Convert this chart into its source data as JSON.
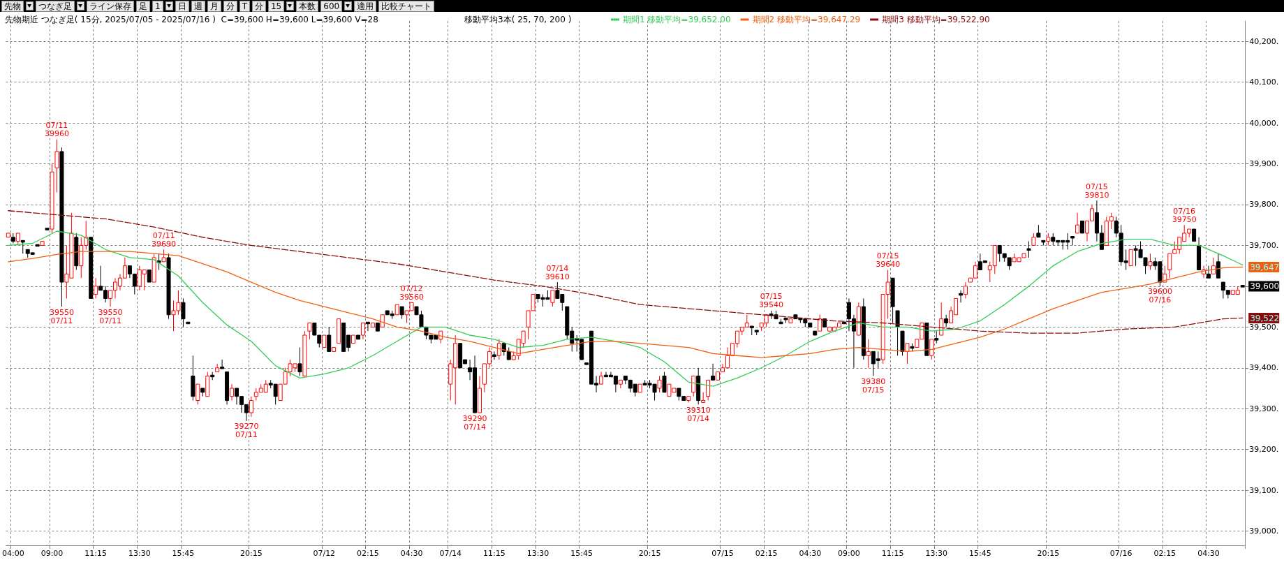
{
  "chart_data": {
    "type": "candlestick",
    "title": "先物期近 つなぎ足( 15分, 2025/07/05 - 2025/07/16 )  C=39,600 H=39,600 L=39,600 V=28",
    "subtitle": "移動平均3本( 25, 70, 200 )",
    "categories": [
      null,
      "04:00",
      null,
      null,
      null,
      null,
      null,
      null,
      null,
      "09:00",
      null,
      null,
      null,
      null,
      null,
      null,
      null,
      null,
      "11:15",
      null,
      null,
      null,
      null,
      null,
      null,
      null,
      null,
      "13:30",
      null,
      null,
      null,
      null,
      null,
      null,
      null,
      null,
      "15:45",
      null,
      null,
      null,
      null,
      null,
      null,
      null,
      null,
      null,
      null,
      null,
      null,
      null,
      "20:15",
      null,
      null,
      null,
      null,
      null,
      null,
      null,
      null,
      null,
      null,
      null,
      null,
      null,
      null,
      "07/12",
      null,
      null,
      null,
      null,
      null,
      null,
      null,
      null,
      "02:15",
      null,
      null,
      null,
      null,
      null,
      null,
      null,
      null,
      "04:30",
      null,
      null,
      null,
      null,
      null,
      null,
      null,
      "07/14",
      null,
      null,
      null,
      null,
      null,
      null,
      null,
      null,
      "11:15",
      null,
      null,
      null,
      null,
      null,
      null,
      null,
      null,
      "13:30",
      null,
      null,
      null,
      null,
      null,
      null,
      null,
      null,
      "15:45",
      null,
      null,
      null,
      null,
      null,
      null,
      null,
      null,
      null,
      null,
      null,
      null,
      null,
      "20:15",
      null,
      null,
      null,
      null,
      null,
      null,
      null,
      null,
      null,
      null,
      null,
      null,
      null,
      null,
      "07/15",
      null,
      null,
      null,
      null,
      null,
      null,
      null,
      null,
      "02:15",
      null,
      null,
      null,
      null,
      null,
      null,
      null,
      null,
      "04:30",
      null,
      null,
      null,
      null,
      null,
      null,
      null,
      "09:00",
      null,
      null,
      null,
      null,
      null,
      null,
      null,
      null,
      "11:15",
      null,
      null,
      null,
      null,
      null,
      null,
      null,
      null,
      "13:30",
      null,
      null,
      null,
      null,
      null,
      null,
      null,
      null,
      "15:45",
      null,
      null,
      null,
      null,
      null,
      null,
      null,
      null,
      null,
      null,
      null,
      null,
      null,
      "20:15",
      null,
      null,
      null,
      null,
      null,
      null,
      null,
      null,
      null,
      null,
      null,
      null,
      null,
      null,
      "07/16",
      null,
      null,
      null,
      null,
      null,
      null,
      null,
      null,
      "02:15",
      null,
      null,
      null,
      null,
      null,
      null,
      null,
      null,
      "04:30",
      null,
      null,
      null,
      null,
      null,
      null,
      null
    ],
    "ohlc": [
      [
        39720,
        39730,
        39720,
        39730
      ],
      [
        39720,
        39730,
        39705,
        39710
      ],
      [
        39710,
        39730,
        39700,
        39730
      ],
      [
        39710,
        39710,
        39680,
        39710
      ],
      [
        39690,
        39690,
        39670,
        39680
      ],
      [
        39680,
        39680,
        39680,
        39680
      ],
      [
        39700,
        39700,
        39700,
        39700
      ],
      [
        39700,
        39710,
        39700,
        39710
      ],
      [
        39740,
        39740,
        39740,
        39740
      ],
      [
        39740,
        39900,
        39730,
        39880
      ],
      [
        39890,
        39960,
        39830,
        39930
      ],
      [
        39930,
        39940,
        39550,
        39610
      ],
      [
        39610,
        39700,
        39570,
        39630
      ],
      [
        39620,
        39780,
        39620,
        39730
      ],
      [
        39720,
        39730,
        39640,
        39650
      ],
      [
        39650,
        39720,
        39620,
        39700
      ],
      [
        39700,
        39760,
        39690,
        39720
      ],
      [
        39720,
        39720,
        39570,
        39570
      ],
      [
        39580,
        39620,
        39570,
        39600
      ],
      [
        39600,
        39650,
        39590,
        39590
      ],
      [
        39590,
        39600,
        39560,
        39570
      ],
      [
        39570,
        39590,
        39550,
        39590
      ],
      [
        39590,
        39620,
        39570,
        39610
      ],
      [
        39600,
        39630,
        39590,
        39620
      ],
      [
        39620,
        39670,
        39620,
        39650
      ],
      [
        39650,
        39650,
        39620,
        39630
      ],
      [
        39630,
        39630,
        39580,
        39600
      ],
      [
        39600,
        39650,
        39590,
        39640
      ],
      [
        39630,
        39640,
        39590,
        39640
      ],
      [
        39640,
        39640,
        39610,
        39610
      ],
      [
        39610,
        39680,
        39610,
        39670
      ],
      [
        39660,
        39680,
        39640,
        39660
      ],
      [
        39660,
        39690,
        39660,
        39670
      ],
      [
        39670,
        39680,
        39520,
        39530
      ],
      [
        39530,
        39565,
        39490,
        39540
      ],
      [
        39540,
        39590,
        39530,
        39560
      ],
      [
        39560,
        39570,
        39500,
        39520
      ],
      [
        39510,
        39510,
        39510,
        39510
      ],
      [
        39380,
        39430,
        39320,
        39330
      ],
      [
        39320,
        39360,
        39310,
        39360
      ],
      [
        39350,
        39350,
        39330,
        39340
      ],
      [
        39330,
        39390,
        39330,
        39380
      ],
      [
        39380,
        39390,
        39370,
        39380
      ],
      [
        39390,
        39410,
        39390,
        39400
      ],
      [
        39400,
        39420,
        39400,
        39400
      ],
      [
        39390,
        39390,
        39310,
        39320
      ],
      [
        39330,
        39360,
        39320,
        39350
      ],
      [
        39350,
        39350,
        39310,
        39330
      ],
      [
        39330,
        39330,
        39290,
        39310
      ],
      [
        39310,
        39310,
        39270,
        39290
      ],
      [
        39290,
        39330,
        39280,
        39320
      ],
      [
        39330,
        39350,
        39320,
        39340
      ],
      [
        39340,
        39360,
        39340,
        39350
      ],
      [
        39340,
        39370,
        39340,
        39360
      ],
      [
        39360,
        39370,
        39350,
        39360
      ],
      [
        39360,
        39360,
        39310,
        39330
      ],
      [
        39320,
        39360,
        39320,
        39360
      ],
      [
        39360,
        39400,
        39360,
        39390
      ],
      [
        39390,
        39420,
        39380,
        39410
      ],
      [
        39400,
        39410,
        39390,
        39410
      ],
      [
        39410,
        39450,
        39380,
        39390
      ],
      [
        39380,
        39490,
        39380,
        39480
      ],
      [
        39490,
        39510,
        39470,
        39510
      ],
      [
        39510,
        39510,
        39480,
        39480
      ],
      [
        39480,
        39480,
        39450,
        39460
      ],
      [
        39450,
        39480,
        39450,
        39480
      ],
      [
        39480,
        39500,
        39440,
        39440
      ],
      [
        39440,
        39450,
        39440,
        39450
      ],
      [
        39460,
        39520,
        39460,
        39520
      ],
      [
        39510,
        39510,
        39440,
        39440
      ],
      [
        39480,
        39480,
        39440,
        39450
      ],
      [
        39460,
        39480,
        39460,
        39480
      ],
      [
        39480,
        39480,
        39470,
        39470
      ],
      [
        39480,
        39510,
        39470,
        39510
      ],
      [
        39510,
        39510,
        39490,
        39510
      ],
      [
        39500,
        39510,
        39500,
        39510
      ],
      [
        39510,
        39510,
        39490,
        39490
      ],
      [
        39500,
        39530,
        39500,
        39530
      ],
      [
        39540,
        39540,
        39530,
        39530
      ],
      [
        39530,
        39540,
        39520,
        39530
      ],
      [
        39530,
        39555,
        39530,
        39555
      ],
      [
        39550,
        39550,
        39520,
        39530
      ],
      [
        39530,
        39540,
        39510,
        39540
      ],
      [
        39540,
        39560,
        39540,
        39560
      ],
      [
        39550,
        39550,
        39530,
        39530
      ],
      [
        39530,
        39540,
        39500,
        39500
      ],
      [
        39500,
        39500,
        39470,
        39480
      ],
      [
        39480,
        39480,
        39460,
        39470
      ],
      [
        39480,
        39480,
        39470,
        39470
      ],
      [
        39470,
        39490,
        39460,
        39490
      ],
      null,
      [
        39360,
        39420,
        39320,
        39410
      ],
      [
        39400,
        39480,
        39310,
        39460
      ],
      [
        39460,
        39460,
        39400,
        39400
      ],
      [
        39420,
        39420,
        39410,
        39410
      ],
      [
        39400,
        39420,
        39370,
        39390
      ],
      [
        39400,
        39430,
        39290,
        39290
      ],
      [
        39290,
        39380,
        39290,
        39350
      ],
      [
        39360,
        39410,
        39340,
        39410
      ],
      [
        39410,
        39450,
        39400,
        39440
      ],
      [
        39430,
        39440,
        39420,
        39430
      ],
      [
        39430,
        39470,
        39420,
        39460
      ],
      [
        39460,
        39460,
        39430,
        39440
      ],
      [
        39440,
        39450,
        39420,
        39420
      ],
      [
        39420,
        39440,
        39420,
        39430
      ],
      [
        39430,
        39470,
        39420,
        39470
      ],
      [
        39460,
        39490,
        39450,
        39490
      ],
      [
        39500,
        39540,
        39470,
        39540
      ],
      [
        39540,
        39580,
        39540,
        39580
      ],
      [
        39580,
        39580,
        39560,
        39570
      ],
      [
        39570,
        39580,
        39550,
        39570
      ],
      [
        39570,
        39590,
        39570,
        39570
      ],
      [
        39560,
        39590,
        39550,
        39590
      ],
      [
        39590,
        39610,
        39570,
        39570
      ],
      [
        39580,
        39580,
        39540,
        39560
      ],
      [
        39550,
        39550,
        39470,
        39480
      ],
      [
        39490,
        39500,
        39440,
        39460
      ],
      [
        39470,
        39480,
        39440,
        39470
      ],
      [
        39470,
        39470,
        39420,
        39420
      ],
      [
        39410,
        39410,
        39410,
        39410
      ],
      [
        39490,
        39490,
        39360,
        39360
      ],
      [
        39360,
        39380,
        39340,
        39360
      ],
      [
        39360,
        39390,
        39360,
        39380
      ],
      [
        39380,
        39390,
        39380,
        39380
      ],
      [
        39380,
        39390,
        39380,
        39380
      ],
      [
        39380,
        39380,
        39340,
        39360
      ],
      [
        39360,
        39370,
        39350,
        39370
      ],
      [
        39380,
        39380,
        39360,
        39370
      ],
      [
        39370,
        39370,
        39340,
        39350
      ],
      [
        39360,
        39360,
        39330,
        39340
      ],
      [
        39340,
        39360,
        39340,
        39360
      ],
      [
        39360,
        39370,
        39360,
        39360
      ],
      [
        39360,
        39370,
        39350,
        39360
      ],
      [
        39360,
        39360,
        39320,
        39340
      ],
      [
        39350,
        39380,
        39340,
        39370
      ],
      [
        39380,
        39390,
        39340,
        39340
      ],
      [
        39330,
        39360,
        39330,
        39360
      ],
      [
        39340,
        39350,
        39340,
        39350
      ],
      [
        39350,
        39350,
        39320,
        39330
      ],
      [
        39330,
        39330,
        39320,
        39320
      ],
      [
        39320,
        39330,
        39315,
        39330
      ],
      [
        39340,
        39380,
        39330,
        39380
      ],
      [
        39380,
        39400,
        39310,
        39320
      ],
      [
        39315,
        39340,
        39315,
        39320
      ],
      [
        39330,
        39370,
        39320,
        39370
      ],
      [
        39380,
        39410,
        39370,
        39370
      ],
      [
        39370,
        39390,
        39370,
        39390
      ],
      [
        39390,
        39410,
        39390,
        39400
      ],
      [
        39400,
        39450,
        39400,
        39430
      ],
      [
        39430,
        39460,
        39430,
        39460
      ],
      [
        39460,
        39490,
        39450,
        39490
      ],
      [
        39490,
        39500,
        39480,
        39500
      ],
      [
        39500,
        39530,
        39500,
        39510
      ],
      [
        39500,
        39500,
        39480,
        39500
      ],
      [
        39490,
        39490,
        39480,
        39490
      ],
      [
        39500,
        39510,
        39490,
        39510
      ],
      [
        39510,
        39530,
        39500,
        39530
      ],
      [
        39530,
        39540,
        39520,
        39530
      ],
      [
        39530,
        39540,
        39520,
        39520
      ],
      [
        39510,
        39520,
        39510,
        39510
      ],
      [
        39520,
        39520,
        39510,
        39520
      ],
      [
        39510,
        39520,
        39510,
        39520
      ],
      [
        39530,
        39530,
        39520,
        39520
      ],
      [
        39520,
        39520,
        39510,
        39520
      ],
      [
        39520,
        39520,
        39500,
        39510
      ],
      [
        39510,
        39510,
        39500,
        39500
      ],
      [
        39490,
        39490,
        39480,
        39480
      ],
      [
        39490,
        39530,
        39490,
        39520
      ],
      [
        39520,
        39520,
        39500,
        39500
      ],
      [
        39490,
        39500,
        39490,
        39500
      ],
      [
        39490,
        39500,
        39490,
        39500
      ],
      [
        39500,
        39510,
        39500,
        39510
      ],
      [
        39510,
        39510,
        39510,
        39510
      ],
      [
        39560,
        39570,
        39490,
        39520
      ],
      [
        39520,
        39530,
        39400,
        39490
      ],
      [
        39480,
        39560,
        39480,
        39550
      ],
      [
        39550,
        39570,
        39420,
        39430
      ],
      [
        39430,
        39470,
        39400,
        39440
      ],
      [
        39440,
        39440,
        39380,
        39410
      ],
      [
        39420,
        39440,
        39400,
        39420
      ],
      [
        39420,
        39580,
        39410,
        39580
      ],
      [
        39580,
        39640,
        39520,
        39610
      ],
      [
        39620,
        39620,
        39510,
        39550
      ],
      [
        39540,
        39540,
        39430,
        39500
      ],
      [
        39490,
        39490,
        39430,
        39440
      ],
      [
        39440,
        39460,
        39410,
        39460
      ],
      [
        39450,
        39460,
        39440,
        39450
      ],
      [
        39450,
        39470,
        39450,
        39470
      ],
      [
        39470,
        39510,
        39470,
        39510
      ],
      [
        39510,
        39510,
        39430,
        39430
      ],
      [
        39430,
        39470,
        39420,
        39470
      ],
      [
        39470,
        39490,
        39460,
        39470
      ],
      [
        39480,
        39560,
        39480,
        39520
      ],
      [
        39520,
        39530,
        39500,
        39510
      ],
      [
        39510,
        39550,
        39510,
        39540
      ],
      [
        39530,
        39570,
        39530,
        39570
      ],
      [
        39580,
        39590,
        39560,
        39580
      ],
      [
        39580,
        39610,
        39570,
        39600
      ],
      [
        39610,
        39620,
        39610,
        39620
      ],
      [
        39620,
        39660,
        39620,
        39650
      ],
      [
        39660,
        39680,
        39640,
        39640
      ],
      [
        39660,
        39660,
        39660,
        39660
      ],
      [
        39640,
        39660,
        39610,
        39650
      ],
      [
        39650,
        39700,
        39630,
        39700
      ],
      [
        39700,
        39700,
        39660,
        39680
      ],
      [
        39680,
        39680,
        39660,
        39670
      ],
      [
        39670,
        39670,
        39640,
        39650
      ],
      [
        39660,
        39680,
        39660,
        39670
      ],
      [
        39660,
        39670,
        39660,
        39670
      ],
      [
        39670,
        39680,
        39670,
        39680
      ],
      [
        39690,
        39710,
        39670,
        39690
      ],
      [
        39700,
        39730,
        39700,
        39720
      ],
      [
        39730,
        39750,
        39720,
        39720
      ],
      [
        39710,
        39710,
        39700,
        39710
      ],
      [
        39710,
        39730,
        39700,
        39720
      ],
      [
        39720,
        39730,
        39700,
        39710
      ],
      [
        39710,
        39710,
        39700,
        39710
      ],
      [
        39710,
        39710,
        39690,
        39710
      ],
      [
        39710,
        39730,
        39690,
        39710
      ],
      [
        39720,
        39720,
        39700,
        39720
      ],
      [
        39730,
        39780,
        39730,
        39750
      ],
      [
        39760,
        39760,
        39730,
        39730
      ],
      [
        39730,
        39760,
        39710,
        39760
      ],
      [
        39760,
        39800,
        39760,
        39790
      ],
      [
        39780,
        39810,
        39710,
        39730
      ],
      [
        39730,
        39750,
        39690,
        39690
      ],
      [
        39700,
        39770,
        39700,
        39760
      ],
      [
        39760,
        39780,
        39740,
        39770
      ],
      [
        39760,
        39770,
        39720,
        39730
      ],
      [
        39730,
        39750,
        39650,
        39660
      ],
      [
        39660,
        39690,
        39640,
        39660
      ],
      [
        39650,
        39690,
        39650,
        39690
      ],
      [
        39690,
        39700,
        39650,
        39690
      ],
      [
        39690,
        39710,
        39670,
        39670
      ],
      [
        39670,
        39670,
        39630,
        39650
      ],
      [
        39650,
        39680,
        39640,
        39660
      ],
      [
        39660,
        39670,
        39640,
        39650
      ],
      [
        39660,
        39660,
        39600,
        39610
      ],
      [
        39610,
        39650,
        39610,
        39630
      ],
      [
        39640,
        39680,
        39620,
        39680
      ],
      [
        39680,
        39710,
        39680,
        39690
      ],
      [
        39690,
        39720,
        39680,
        39720
      ],
      [
        39710,
        39750,
        39710,
        39730
      ],
      [
        39730,
        39740,
        39720,
        39740
      ],
      [
        39740,
        39740,
        39710,
        39710
      ],
      [
        39700,
        39720,
        39640,
        39640
      ],
      [
        39630,
        39650,
        39620,
        39640
      ],
      [
        39630,
        39650,
        39620,
        39620
      ],
      [
        39630,
        39670,
        39630,
        39650
      ],
      [
        39660,
        39680,
        39620,
        39620
      ],
      [
        39610,
        39610,
        39570,
        39590
      ],
      [
        39590,
        39590,
        39570,
        39580
      ],
      [
        39580,
        39590,
        39580,
        39590
      ],
      [
        39580,
        39600,
        39580,
        39590
      ],
      [
        39600,
        39600,
        39600,
        39600
      ]
    ],
    "series": [
      {
        "name": "期間1 移動平均=39,652.00",
        "type": "line",
        "color": "#33cc55",
        "line_style": "solid",
        "values": [
          39700,
          null,
          null,
          null,
          null,
          39705,
          null,
          null,
          null,
          null,
          39735,
          null,
          null,
          null,
          null,
          39725,
          null,
          null,
          null,
          null,
          39690,
          null,
          null,
          null,
          null,
          39670,
          null,
          null,
          null,
          null,
          39665,
          null,
          null,
          null,
          null,
          39625,
          null,
          null,
          null,
          null,
          39560,
          null,
          null,
          null,
          null,
          39505,
          null,
          null,
          null,
          null,
          39465,
          null,
          null,
          null,
          null,
          39405,
          null,
          null,
          null,
          null,
          39375,
          null,
          null,
          null,
          null,
          39385,
          null,
          null,
          null,
          null,
          39400,
          null,
          null,
          null,
          null,
          39430,
          null,
          null,
          null,
          null,
          39465,
          null,
          null,
          null,
          null,
          39500,
          null,
          null,
          null,
          null,
          39500,
          null,
          null,
          null,
          null,
          39480,
          null,
          null,
          null,
          null,
          39470,
          null,
          null,
          null,
          null,
          39450,
          null,
          null,
          null,
          null,
          39455,
          null,
          null,
          null,
          null,
          39470,
          null,
          null,
          null,
          null,
          39475,
          null,
          null,
          null,
          null,
          39465,
          null,
          null,
          null,
          null,
          39450,
          null,
          null,
          null,
          null,
          39415,
          null,
          null,
          null,
          null,
          39365,
          null,
          null,
          null,
          null,
          39355,
          null,
          null,
          null,
          null,
          39375,
          null,
          null,
          null,
          null,
          39400,
          null,
          null,
          null,
          null,
          39430,
          null,
          null,
          null,
          null,
          39465,
          null,
          null,
          null,
          null,
          39490,
          null,
          null,
          null,
          null,
          39510,
          null,
          null,
          null,
          null,
          39500,
          null,
          null,
          null,
          null,
          39500,
          null,
          null,
          null,
          null,
          39490,
          null,
          null,
          null,
          null,
          39495,
          null,
          null,
          null,
          null,
          39515,
          null,
          null,
          null,
          null,
          39555,
          null,
          null,
          null,
          null,
          39600,
          null,
          null,
          null,
          null,
          39650,
          null,
          null,
          null,
          null,
          39685,
          null,
          null,
          null,
          null,
          39705,
          null,
          null,
          null,
          null,
          39715,
          null,
          null,
          null,
          null,
          39715,
          null,
          null,
          null,
          null,
          39700,
          null,
          null,
          null,
          null,
          39700,
          null,
          null,
          null,
          null,
          39675,
          null,
          null,
          null,
          39652
        ]
      },
      {
        "name": "期間2 移動平均=39,647.29",
        "type": "line",
        "color": "#f06010",
        "line_style": "solid",
        "values": [
          39660,
          null,
          null,
          null,
          null,
          39668,
          null,
          null,
          null,
          null,
          39678,
          null,
          null,
          null,
          null,
          39685,
          null,
          null,
          null,
          null,
          39685,
          null,
          null,
          null,
          null,
          39685,
          null,
          null,
          null,
          null,
          39680,
          null,
          null,
          null,
          null,
          39675,
          null,
          null,
          null,
          null,
          39655,
          null,
          null,
          null,
          null,
          39635,
          null,
          null,
          null,
          null,
          39610,
          null,
          null,
          null,
          null,
          39585,
          null,
          null,
          null,
          null,
          39565,
          null,
          null,
          null,
          null,
          39550,
          null,
          null,
          null,
          null,
          39535,
          null,
          null,
          null,
          null,
          39520,
          null,
          null,
          null,
          null,
          39500,
          null,
          null,
          null,
          null,
          39490,
          null,
          null,
          null,
          null,
          39475,
          null,
          null,
          null,
          null,
          39465,
          null,
          null,
          null,
          null,
          39450,
          null,
          null,
          null,
          null,
          39435,
          null,
          null,
          null,
          null,
          39445,
          null,
          null,
          null,
          null,
          39455,
          null,
          null,
          null,
          null,
          39465,
          null,
          null,
          null,
          null,
          39465,
          null,
          null,
          null,
          null,
          39460,
          null,
          null,
          null,
          null,
          39455,
          null,
          null,
          null,
          null,
          39450,
          null,
          null,
          null,
          null,
          39435,
          null,
          null,
          null,
          null,
          39430,
          null,
          null,
          null,
          null,
          39425,
          null,
          null,
          null,
          null,
          39430,
          null,
          null,
          null,
          null,
          39435,
          null,
          null,
          null,
          null,
          39445,
          null,
          null,
          null,
          null,
          39450,
          null,
          null,
          null,
          null,
          39445,
          null,
          null,
          null,
          null,
          39440,
          null,
          null,
          null,
          null,
          39445,
          null,
          null,
          null,
          null,
          39460,
          null,
          null,
          null,
          null,
          39475,
          null,
          null,
          null,
          null,
          39495,
          null,
          null,
          null,
          null,
          39520,
          null,
          null,
          null,
          null,
          39545,
          null,
          null,
          null,
          null,
          39565,
          null,
          null,
          null,
          null,
          39585,
          null,
          null,
          null,
          null,
          39595,
          null,
          null,
          null,
          null,
          39605,
          null,
          null,
          null,
          null,
          39620,
          null,
          null,
          null,
          null,
          39635,
          null,
          null,
          null,
          null,
          39645,
          null,
          null,
          null,
          39647
        ]
      },
      {
        "name": "期間3 移動平均=39,522.90",
        "type": "line",
        "color": "#8b0a0a",
        "line_style": "dashed",
        "values": [
          39785,
          null,
          null,
          null,
          null,
          null,
          null,
          null,
          null,
          null,
          39775,
          null,
          null,
          null,
          null,
          null,
          null,
          null,
          null,
          null,
          39765,
          null,
          null,
          null,
          null,
          null,
          null,
          null,
          null,
          null,
          39745,
          null,
          null,
          null,
          null,
          null,
          null,
          null,
          null,
          null,
          39720,
          null,
          null,
          null,
          null,
          null,
          null,
          null,
          null,
          null,
          39700,
          null,
          null,
          null,
          null,
          null,
          null,
          null,
          null,
          null,
          39685,
          null,
          null,
          null,
          null,
          null,
          null,
          null,
          null,
          null,
          39670,
          null,
          null,
          null,
          null,
          null,
          null,
          null,
          null,
          null,
          39655,
          null,
          null,
          null,
          null,
          null,
          null,
          null,
          null,
          null,
          39635,
          null,
          null,
          null,
          null,
          null,
          null,
          null,
          null,
          null,
          39615,
          null,
          null,
          null,
          null,
          null,
          null,
          null,
          null,
          null,
          39600,
          null,
          null,
          null,
          null,
          null,
          null,
          null,
          null,
          null,
          39580,
          null,
          null,
          null,
          null,
          null,
          null,
          null,
          null,
          null,
          39555,
          null,
          null,
          null,
          null,
          null,
          null,
          null,
          null,
          null,
          39545,
          null,
          null,
          null,
          null,
          null,
          null,
          null,
          null,
          null,
          39535,
          null,
          null,
          null,
          null,
          null,
          null,
          null,
          null,
          null,
          39525,
          null,
          null,
          null,
          null,
          null,
          null,
          null,
          null,
          null,
          39515,
          null,
          null,
          null,
          null,
          null,
          null,
          null,
          null,
          null,
          39510,
          null,
          null,
          null,
          null,
          null,
          null,
          null,
          null,
          null,
          39500,
          null,
          null,
          null,
          null,
          null,
          null,
          null,
          null,
          null,
          39490,
          null,
          null,
          null,
          null,
          null,
          null,
          null,
          null,
          null,
          39485,
          null,
          null,
          null,
          null,
          null,
          null,
          null,
          null,
          null,
          39485,
          null,
          null,
          null,
          null,
          null,
          null,
          null,
          null,
          null,
          39495,
          null,
          null,
          null,
          null,
          null,
          null,
          null,
          null,
          null,
          39500,
          null,
          null,
          null,
          null,
          null,
          null,
          null,
          null,
          null,
          39520,
          null,
          null,
          null,
          39522
        ]
      }
    ],
    "ylim": [
      38965,
      40250
    ],
    "yticks": [
      {
        "value": 39000,
        "label": "39,000."
      },
      {
        "value": 39100,
        "label": "39,100."
      },
      {
        "value": 39200,
        "label": "39,200."
      },
      {
        "value": 39300,
        "label": "39,300."
      },
      {
        "value": 39400,
        "label": "39,400."
      },
      {
        "value": 39500,
        "label": "39,500."
      },
      {
        "value": 39600,
        "label": null
      },
      {
        "value": 39700,
        "label": "39,700."
      },
      {
        "value": 39800,
        "label": "39,800."
      },
      {
        "value": 39900,
        "label": "39,900."
      },
      {
        "value": 40000,
        "label": "40,000."
      },
      {
        "value": 40100,
        "label": "40,100."
      },
      {
        "value": 40200,
        "label": "40,200."
      }
    ],
    "y2lim": [
      38965,
      40250
    ],
    "y2ticks": [
      {
        "value": 39647,
        "label": "39,647."
      },
      {
        "value": 39600,
        "label": "39,600"
      },
      {
        "value": 39522,
        "label": "39,522."
      }
    ],
    "annotations": [
      "先物",
      "つなぎ足",
      "ライン保存",
      "足",
      "1",
      "日",
      "週",
      "月",
      "分",
      "T",
      "分",
      "15",
      "本数",
      "600",
      "適用",
      "比較チャート",
      {
        "text": "07/11\n39960",
        "y": 39960
      },
      {
        "text": "39550\n07/11",
        "y": 39550
      },
      {
        "text": "39550\n07/11",
        "y": 39550
      },
      {
        "text": "07/11\n39690",
        "y": 39690
      },
      {
        "text": "39270\n07/11",
        "y": 39270
      },
      {
        "text": "07/12\n39560",
        "y": 39560
      },
      {
        "text": "39290\n07/14",
        "y": 39290
      },
      {
        "text": "07/14\n39610",
        "y": 39610
      },
      {
        "text": "39310\n07/14",
        "y": 39310
      },
      {
        "text": "07/15\n39540",
        "y": 39540
      },
      {
        "text": "39380\n07/15",
        "y": 39380
      },
      {
        "text": "07/15\n39640",
        "y": 39640
      },
      {
        "text": "07/15\n39810",
        "y": 39810
      },
      {
        "text": "39600\n07/16",
        "y": 39600
      },
      {
        "text": "07/16\n39750",
        "y": 39750
      }
    ],
    "grid": true,
    "legend": "top",
    "marker": "none"
  }
}
